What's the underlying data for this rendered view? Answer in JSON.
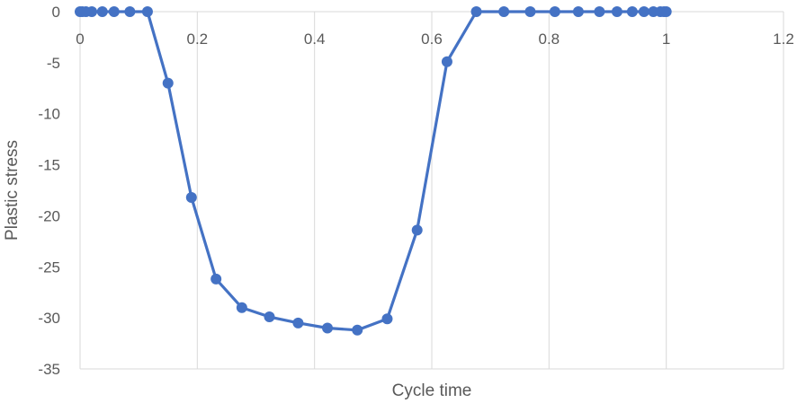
{
  "chart_data": {
    "type": "line",
    "title": "",
    "xlabel": "Cycle time",
    "ylabel": "Plastic stress",
    "xlim": [
      0,
      1.2
    ],
    "ylim": [
      -35,
      0
    ],
    "x_ticks": [
      0,
      0.2,
      0.4,
      0.6,
      0.8,
      1,
      1.2
    ],
    "y_ticks": [
      0,
      -5,
      -10,
      -15,
      -20,
      -25,
      -30,
      -35
    ],
    "x_tick_labels": [
      "0",
      "0.2",
      "0.4",
      "0.6",
      "0.8",
      "1",
      "1.2"
    ],
    "y_tick_labels": [
      "0",
      "-5",
      "-10",
      "-15",
      "-20",
      "-25",
      "-30",
      "-35"
    ],
    "x_axis_position": "top",
    "grid": "vertical",
    "legend": "none",
    "series": [
      {
        "color": "#4472C4",
        "marker": "circle",
        "points": [
          [
            0,
            0
          ],
          [
            0.004,
            0
          ],
          [
            0.01,
            0
          ],
          [
            0.02,
            0
          ],
          [
            0.038,
            0
          ],
          [
            0.058,
            0
          ],
          [
            0.085,
            0
          ],
          [
            0.115,
            0
          ],
          [
            0.15,
            -7.0
          ],
          [
            0.19,
            -18.2
          ],
          [
            0.232,
            -26.2
          ],
          [
            0.276,
            -29.0
          ],
          [
            0.323,
            -29.9
          ],
          [
            0.372,
            -30.5
          ],
          [
            0.422,
            -31.0
          ],
          [
            0.473,
            -31.2
          ],
          [
            0.524,
            -30.1
          ],
          [
            0.575,
            -21.4
          ],
          [
            0.626,
            -4.9
          ],
          [
            0.676,
            0
          ],
          [
            0.723,
            0
          ],
          [
            0.768,
            0
          ],
          [
            0.81,
            0
          ],
          [
            0.85,
            0
          ],
          [
            0.886,
            0
          ],
          [
            0.916,
            0
          ],
          [
            0.942,
            0
          ],
          [
            0.962,
            0
          ],
          [
            0.978,
            0
          ],
          [
            0.99,
            0
          ],
          [
            0.996,
            0
          ],
          [
            1.0,
            0
          ]
        ]
      }
    ]
  }
}
